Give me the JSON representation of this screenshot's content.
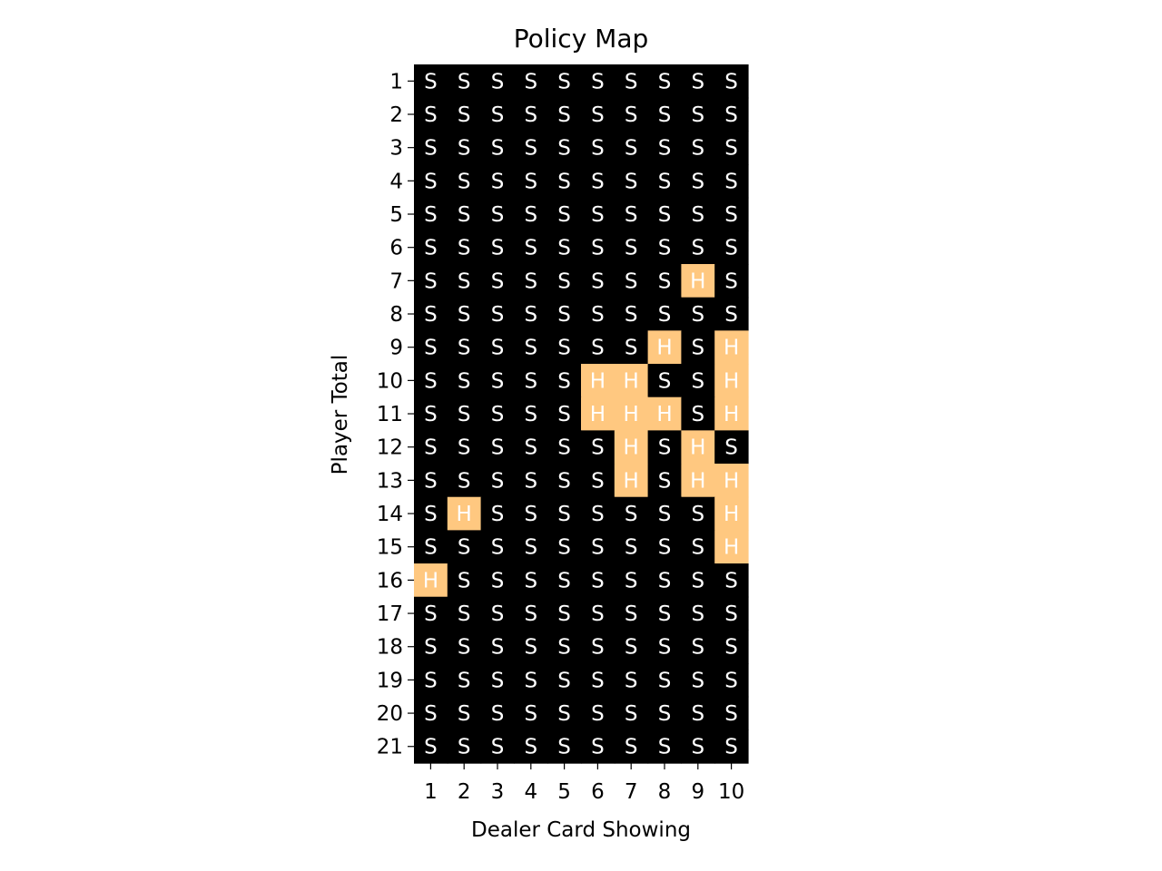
{
  "chart_data": {
    "type": "heatmap",
    "title": "Policy Map",
    "xlabel": "Dealer Card Showing",
    "ylabel": "Player Total",
    "x_categories": [
      "1",
      "2",
      "3",
      "4",
      "5",
      "6",
      "7",
      "8",
      "9",
      "10"
    ],
    "y_categories": [
      "1",
      "2",
      "3",
      "4",
      "5",
      "6",
      "7",
      "8",
      "9",
      "10",
      "11",
      "12",
      "13",
      "14",
      "15",
      "16",
      "17",
      "18",
      "19",
      "20",
      "21"
    ],
    "colors": {
      "S": "#000000",
      "H": "#ffc880"
    },
    "grid": false,
    "values": [
      [
        "S",
        "S",
        "S",
        "S",
        "S",
        "S",
        "S",
        "S",
        "S",
        "S"
      ],
      [
        "S",
        "S",
        "S",
        "S",
        "S",
        "S",
        "S",
        "S",
        "S",
        "S"
      ],
      [
        "S",
        "S",
        "S",
        "S",
        "S",
        "S",
        "S",
        "S",
        "S",
        "S"
      ],
      [
        "S",
        "S",
        "S",
        "S",
        "S",
        "S",
        "S",
        "S",
        "S",
        "S"
      ],
      [
        "S",
        "S",
        "S",
        "S",
        "S",
        "S",
        "S",
        "S",
        "S",
        "S"
      ],
      [
        "S",
        "S",
        "S",
        "S",
        "S",
        "S",
        "S",
        "S",
        "S",
        "S"
      ],
      [
        "S",
        "S",
        "S",
        "S",
        "S",
        "S",
        "S",
        "S",
        "H",
        "S"
      ],
      [
        "S",
        "S",
        "S",
        "S",
        "S",
        "S",
        "S",
        "S",
        "S",
        "S"
      ],
      [
        "S",
        "S",
        "S",
        "S",
        "S",
        "S",
        "S",
        "H",
        "S",
        "H"
      ],
      [
        "S",
        "S",
        "S",
        "S",
        "S",
        "H",
        "H",
        "S",
        "S",
        "H"
      ],
      [
        "S",
        "S",
        "S",
        "S",
        "S",
        "H",
        "H",
        "H",
        "S",
        "H"
      ],
      [
        "S",
        "S",
        "S",
        "S",
        "S",
        "S",
        "H",
        "S",
        "H",
        "S"
      ],
      [
        "S",
        "S",
        "S",
        "S",
        "S",
        "S",
        "H",
        "S",
        "H",
        "H"
      ],
      [
        "S",
        "H",
        "S",
        "S",
        "S",
        "S",
        "S",
        "S",
        "S",
        "H"
      ],
      [
        "S",
        "S",
        "S",
        "S",
        "S",
        "S",
        "S",
        "S",
        "S",
        "H"
      ],
      [
        "H",
        "S",
        "S",
        "S",
        "S",
        "S",
        "S",
        "S",
        "S",
        "S"
      ],
      [
        "S",
        "S",
        "S",
        "S",
        "S",
        "S",
        "S",
        "S",
        "S",
        "S"
      ],
      [
        "S",
        "S",
        "S",
        "S",
        "S",
        "S",
        "S",
        "S",
        "S",
        "S"
      ],
      [
        "S",
        "S",
        "S",
        "S",
        "S",
        "S",
        "S",
        "S",
        "S",
        "S"
      ],
      [
        "S",
        "S",
        "S",
        "S",
        "S",
        "S",
        "S",
        "S",
        "S",
        "S"
      ],
      [
        "S",
        "S",
        "S",
        "S",
        "S",
        "S",
        "S",
        "S",
        "S",
        "S"
      ]
    ]
  }
}
